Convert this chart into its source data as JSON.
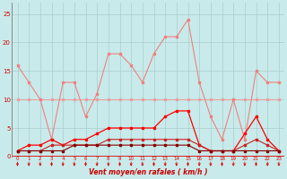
{
  "xlabel": "Vent moyen/en rafales ( km/h )",
  "x": [
    0,
    1,
    2,
    3,
    4,
    5,
    6,
    7,
    8,
    9,
    10,
    11,
    12,
    13,
    14,
    15,
    16,
    17,
    18,
    19,
    20,
    21,
    22,
    23
  ],
  "line1_pink": [
    16,
    13,
    10,
    3,
    13,
    13,
    7,
    11,
    18,
    18,
    16,
    13,
    18,
    21,
    21,
    24,
    13,
    7,
    3,
    10,
    3,
    15,
    13,
    13
  ],
  "line2_pink_flat": [
    10,
    10,
    10,
    10,
    10,
    10,
    10,
    10,
    10,
    10,
    10,
    10,
    10,
    10,
    10,
    10,
    10,
    10,
    10,
    10,
    10,
    10,
    10,
    10
  ],
  "line3_red": [
    1,
    2,
    2,
    3,
    2,
    3,
    3,
    4,
    5,
    5,
    5,
    5,
    5,
    7,
    8,
    8,
    2,
    1,
    1,
    1,
    4,
    7,
    3,
    1
  ],
  "line4_darkred": [
    1,
    1,
    1,
    2,
    2,
    2,
    2,
    2,
    3,
    3,
    3,
    3,
    3,
    3,
    3,
    3,
    2,
    1,
    1,
    1,
    2,
    3,
    2,
    1
  ],
  "line5_darkest": [
    1,
    1,
    1,
    1,
    1,
    2,
    2,
    2,
    2,
    2,
    2,
    2,
    2,
    2,
    2,
    2,
    1,
    1,
    1,
    1,
    1,
    1,
    1,
    1
  ],
  "color_pink": "#f08080",
  "color_pink_flat": "#e8a0a0",
  "color_red": "#ff0000",
  "color_darkred": "#cc2222",
  "color_darkest": "#880000",
  "bg_color": "#c8eaea",
  "grid_color": "#aacccc",
  "tick_color": "#dd0000",
  "label_color": "#cc0000",
  "ylim": [
    0,
    27
  ],
  "yticks": [
    0,
    5,
    10,
    15,
    20,
    25
  ]
}
